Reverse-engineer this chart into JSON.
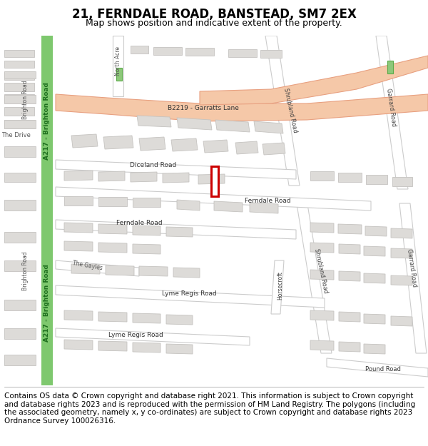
{
  "title": "21, FERNDALE ROAD, BANSTEAD, SM7 2EX",
  "subtitle": "Map shows position and indicative extent of the property.",
  "footer": "Contains OS data © Crown copyright and database right 2021. This information is subject to Crown copyright and database rights 2023 and is reproduced with the permission of HM Land Registry. The polygons (including the associated geometry, namely x, y co-ordinates) are subject to Crown copyright and database rights 2023 Ordnance Survey 100026316.",
  "bg_color": "#ffffff",
  "map_bg": "#f2f0ed",
  "road_fill": "#ffffff",
  "road_stroke": "#cccccc",
  "major_road_fill": "#f5c8a8",
  "major_road_stroke": "#e8a080",
  "green_road_fill": "#7ec86e",
  "green_road_edge": "#5aaa48",
  "building_fill": "#dddbd8",
  "building_stroke": "#c5c3c0",
  "highlight_stroke": "#cc0000",
  "highlight_fill": "#ffffff",
  "title_fontsize": 12,
  "subtitle_fontsize": 9,
  "footer_fontsize": 7.5
}
